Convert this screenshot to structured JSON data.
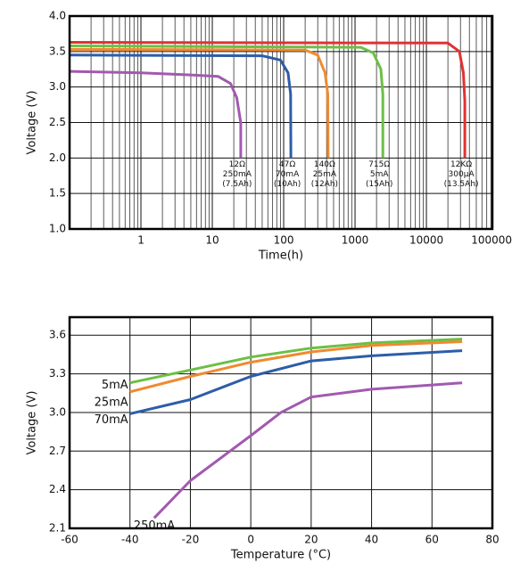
{
  "chart_data": [
    {
      "type": "line",
      "x_label": "Time(h)",
      "y_label": "Voltage (V)",
      "x_scale": "log",
      "grid": true,
      "minor_grid": true,
      "xlim": [
        0.1,
        84000
      ],
      "ylim": [
        1,
        4
      ],
      "xticks": [
        1,
        10,
        100,
        1000,
        10000,
        100000
      ],
      "yticks": [
        {
          "value": 1,
          "label": "1.0"
        },
        1.5,
        {
          "value": 2,
          "label": "2.0"
        },
        2.5,
        {
          "value": 3,
          "label": "3.0"
        },
        3.5,
        {
          "value": 4,
          "label": "4.0"
        }
      ],
      "series": [
        {
          "labels": [
            "12Ω",
            "250mA",
            "(7.5Ah)"
          ],
          "color": "#a259b0",
          "x": [
            0.1,
            1,
            5,
            12,
            18,
            22,
            25,
            25
          ],
          "values": [
            3.22,
            3.2,
            3.17,
            3.15,
            3.05,
            2.85,
            2.5,
            2.0
          ]
        },
        {
          "labels": [
            "47Ω",
            "70mA",
            "(10Ah)"
          ],
          "color": "#2d5da8",
          "x": [
            0.1,
            50,
            90,
            115,
            125,
            126
          ],
          "values": [
            3.45,
            3.44,
            3.38,
            3.2,
            2.9,
            2.0
          ]
        },
        {
          "labels": [
            "140Ω",
            "25mA",
            "(12Ah)"
          ],
          "color": "#f08a30",
          "x": [
            0.1,
            200,
            300,
            380,
            415,
            420
          ],
          "values": [
            3.53,
            3.52,
            3.45,
            3.2,
            2.9,
            2.0
          ]
        },
        {
          "labels": [
            "715Ω",
            "5mA",
            "(15Ah)"
          ],
          "color": "#6cbf45",
          "x": [
            0.1,
            1200,
            1800,
            2300,
            2450,
            2450
          ],
          "values": [
            3.58,
            3.56,
            3.48,
            3.25,
            2.9,
            2.0
          ]
        },
        {
          "labels": [
            "12KΩ",
            "300µA",
            "(13.5Ah)"
          ],
          "color": "#e03232",
          "x": [
            0.1,
            20000,
            29000,
            33000,
            34500,
            34500
          ],
          "values": [
            3.63,
            3.62,
            3.5,
            3.2,
            2.8,
            2.0
          ]
        }
      ]
    },
    {
      "type": "line",
      "x_label": "Temperature (°C)",
      "y_label": "Voltage (V)",
      "grid": true,
      "xlim": [
        -60,
        80
      ],
      "ylim": [
        2.1,
        3.74
      ],
      "xticks": [
        -60,
        -40,
        -20,
        0,
        20,
        40,
        60,
        80
      ],
      "yticks": [
        2.1,
        2.4,
        2.7,
        {
          "value": 3,
          "label": "3.0"
        },
        3.3,
        3.6
      ],
      "series": [
        {
          "name": "5mA",
          "color": "#6cbf45",
          "x": [
            -40,
            -20,
            0,
            20,
            40,
            70
          ],
          "values": [
            3.23,
            3.33,
            3.43,
            3.5,
            3.54,
            3.57
          ]
        },
        {
          "name": "25mA",
          "color": "#f08a30",
          "x": [
            -40,
            -20,
            0,
            20,
            40,
            70
          ],
          "values": [
            3.16,
            3.28,
            3.39,
            3.47,
            3.52,
            3.55
          ]
        },
        {
          "name": "70mA",
          "color": "#2d5da8",
          "x": [
            -40,
            -20,
            0,
            20,
            40,
            70
          ],
          "values": [
            2.99,
            3.1,
            3.28,
            3.4,
            3.44,
            3.48
          ]
        },
        {
          "name": "250mA",
          "color": "#a259b0",
          "x": [
            -32,
            -20,
            0,
            10,
            20,
            40,
            70
          ],
          "values": [
            2.18,
            2.47,
            2.82,
            3.0,
            3.12,
            3.18,
            3.23
          ]
        }
      ]
    }
  ]
}
